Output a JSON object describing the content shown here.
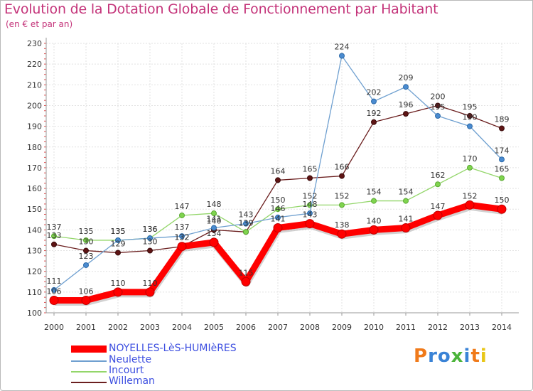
{
  "title": "Evolution de la Dotation Globale de Fonctionnement par Habitant",
  "subtitle": "(en € et par an)",
  "logo": {
    "text": "Proxiti",
    "colors": [
      "#f07a1a",
      "#3a83d6",
      "#3a83d6",
      "#4bb43a",
      "#3a83d6",
      "#f07a1a",
      "#e8c617"
    ]
  },
  "chart_data": {
    "type": "line",
    "title": "Evolution de la Dotation Globale de Fonctionnement par Habitant",
    "subtitle": "(en € et par an)",
    "xlabel": "",
    "ylabel": "",
    "x": [
      "2000",
      "2001",
      "2002",
      "2003",
      "2004",
      "2005",
      "2006",
      "2007",
      "2008",
      "2009",
      "2010",
      "2011",
      "2012",
      "2013",
      "2014"
    ],
    "ylim": [
      100,
      230
    ],
    "yticks": [
      "100",
      "110",
      "120",
      "130",
      "140",
      "150",
      "160",
      "170",
      "180",
      "190",
      "200",
      "210",
      "220",
      "230"
    ],
    "grid": true,
    "legend_position": "bottom-left",
    "series": [
      {
        "name": "NOYELLES-LèS-HUMIèRES",
        "color": "#ff0000",
        "values": [
          106,
          106,
          110,
          110,
          132,
          134,
          115,
          141,
          143,
          138,
          140,
          141,
          147,
          152,
          150
        ],
        "labels": [
          "106",
          "106",
          "110",
          "110",
          "132",
          "134",
          "115",
          "141",
          "143",
          "138",
          "140",
          "141",
          "147",
          "152",
          "150"
        ]
      },
      {
        "name": "Neulette",
        "color": "#6fa0d0",
        "values": [
          111,
          123,
          135,
          136,
          137,
          141,
          143,
          146,
          148,
          224,
          202,
          209,
          195,
          190,
          174
        ],
        "labels": [
          "111",
          "123",
          "135",
          "136",
          "137",
          "141",
          "143",
          "146",
          "148",
          "224",
          "202",
          "209",
          "195",
          "190",
          "174"
        ]
      },
      {
        "name": "Incourt",
        "color": "#93d66a",
        "values": [
          137,
          135,
          135,
          136,
          147,
          148,
          139,
          150,
          152,
          152,
          154,
          154,
          162,
          170,
          165
        ],
        "labels": [
          "137",
          "135",
          "135",
          "136",
          "147",
          "148",
          "139",
          "150",
          "152",
          "152",
          "154",
          "154",
          "162",
          "170",
          "165"
        ]
      },
      {
        "name": "Willeman",
        "color": "#6b1f1f",
        "values": [
          133,
          130,
          129,
          130,
          132,
          140,
          139,
          164,
          165,
          166,
          192,
          196,
          200,
          195,
          189
        ],
        "labels": [
          "133",
          "130",
          "129",
          "130",
          "132",
          "140",
          "139",
          "164",
          "165",
          "166",
          "192",
          "196",
          "200",
          "195",
          "189"
        ]
      }
    ]
  }
}
